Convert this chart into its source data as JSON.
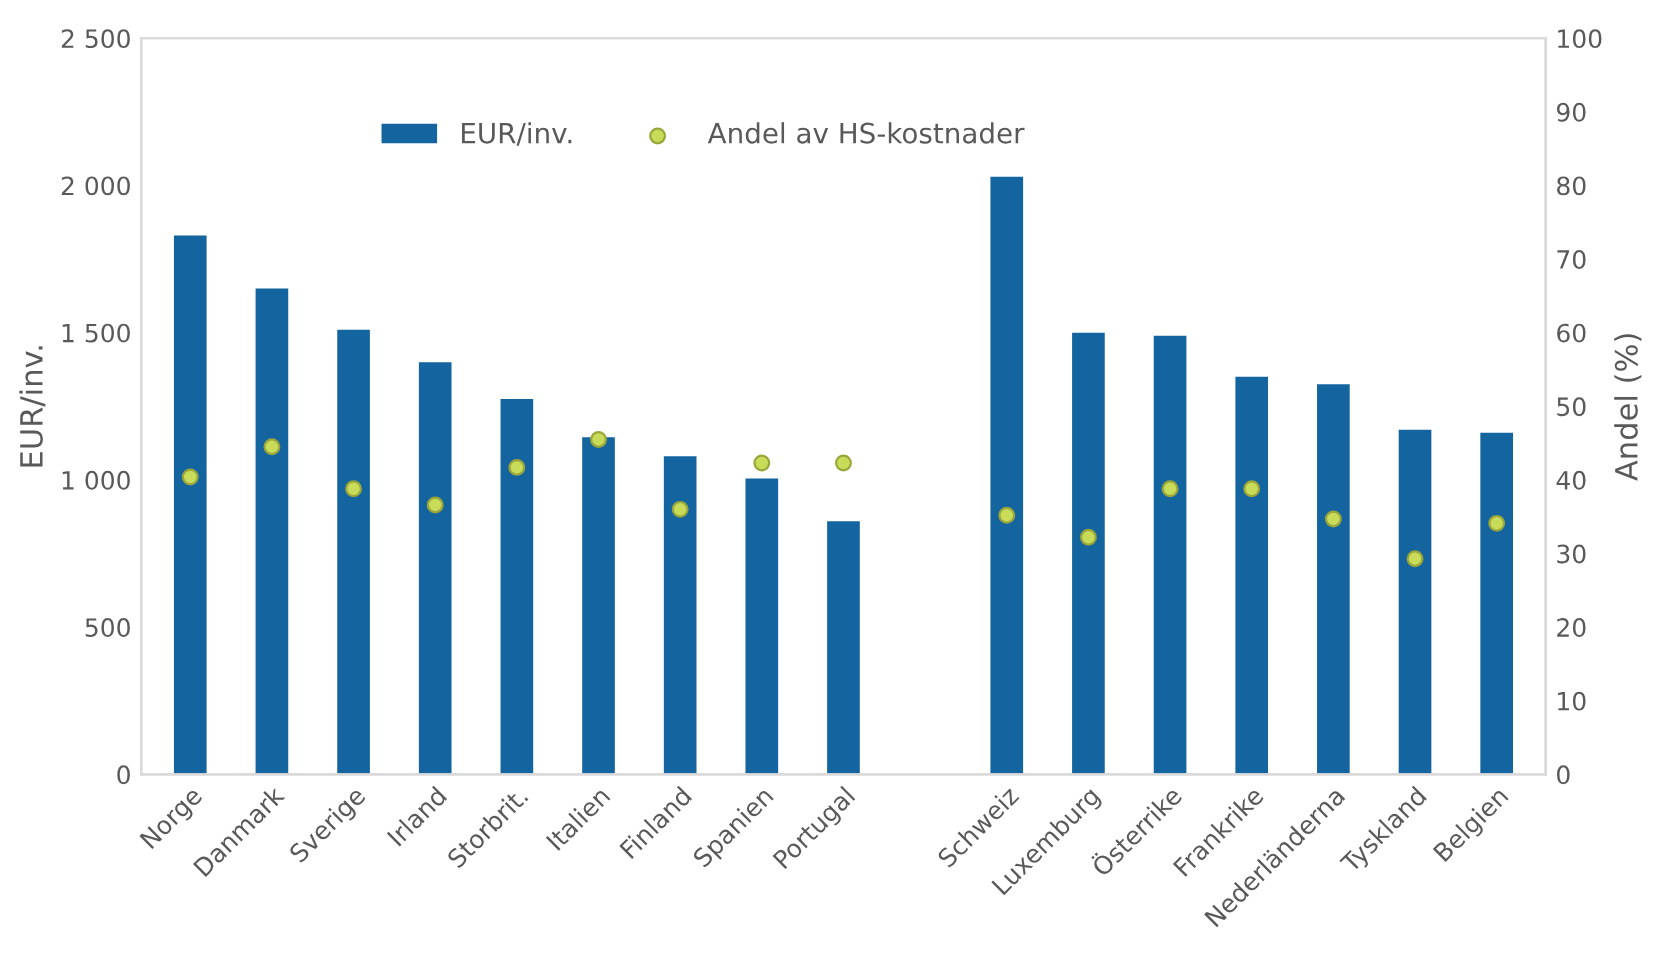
{
  "chart_data": {
    "type": "bar",
    "ylabel": "EUR/inv.",
    "y2label": "Andel (%)",
    "categories": [
      "Norge",
      "Danmark",
      "Sverige",
      "Irland",
      "Storbrit.",
      "Italien",
      "Finland",
      "Spanien",
      "Portugal",
      null,
      "Schweiz",
      "Luxemburg",
      "Österrike",
      "Frankrike",
      "Nederländerna",
      "Tyskland",
      "Belgien"
    ],
    "series": [
      {
        "name": "EUR/inv.",
        "color": "#1464a0",
        "values": [
          1830,
          1650,
          1510,
          1400,
          1275,
          1145,
          1080,
          1005,
          860,
          null,
          2030,
          1500,
          1490,
          1350,
          1325,
          1170,
          1160
        ]
      },
      {
        "name": "Andel av HS-kostnader",
        "type": "scatter",
        "axis": "y2",
        "color": "#c8dc5a",
        "marker": "circle",
        "values": [
          40.4,
          44.5,
          38.8,
          36.6,
          41.7,
          45.5,
          36,
          42.3,
          42.3,
          null,
          35.2,
          32.2,
          38.8,
          38.8,
          34.7,
          29.3,
          34.1
        ]
      }
    ],
    "ylim": [
      0,
      2500
    ],
    "yticks": [
      0,
      500,
      {
        "value": 1000,
        "label": "1 000"
      },
      {
        "value": 1500,
        "label": "1 500"
      },
      {
        "value": 2000,
        "label": "2 000"
      },
      {
        "value": 2500,
        "label": "2 500"
      }
    ],
    "y2lim": [
      0,
      100
    ],
    "y2ticks": [
      0,
      10,
      20,
      30,
      40,
      50,
      60,
      70,
      80,
      90,
      100
    ],
    "legend": "top",
    "grid": false
  }
}
